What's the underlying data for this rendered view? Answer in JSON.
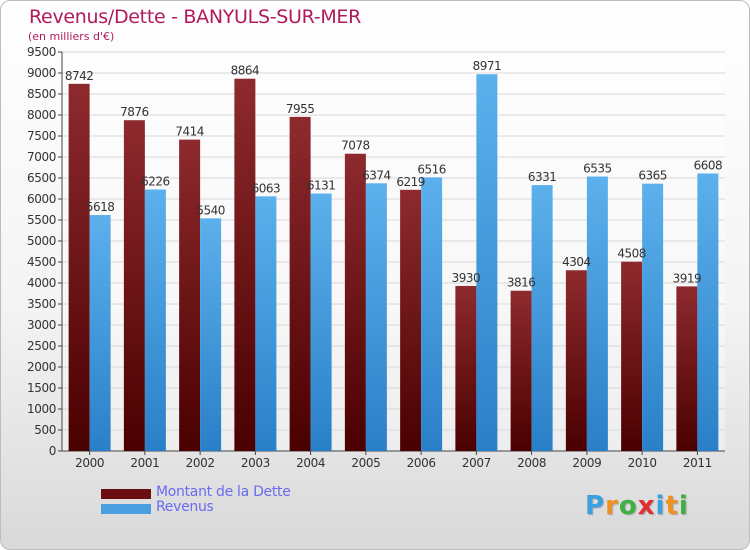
{
  "header": {
    "title": "Revenus/Dette - BANYULS-SUR-MER",
    "subtitle": "(en milliers d'€)"
  },
  "chart_data": {
    "type": "bar",
    "title": "Revenus/Dette - BANYULS-SUR-MER",
    "subtitle": "(en milliers d'€)",
    "xlabel": "",
    "ylabel": "",
    "categories": [
      "2000",
      "2001",
      "2002",
      "2003",
      "2004",
      "2005",
      "2006",
      "2007",
      "2008",
      "2009",
      "2010",
      "2011"
    ],
    "series": [
      {
        "name": "Montant de la Dette",
        "color": "#7a1418",
        "values": [
          8742,
          7876,
          7414,
          8864,
          7955,
          7078,
          6219,
          3930,
          3816,
          4304,
          4508,
          3919
        ]
      },
      {
        "name": "Revenus",
        "color": "#4a9fe0",
        "values": [
          5618,
          6226,
          5540,
          6063,
          6131,
          6374,
          6516,
          8971,
          6331,
          6535,
          6365,
          6608
        ]
      }
    ],
    "ylim": [
      0,
      9500
    ],
    "yticks": [
      0,
      500,
      1000,
      1500,
      2000,
      2500,
      3000,
      3500,
      4000,
      4500,
      5000,
      5500,
      6000,
      6500,
      7000,
      7500,
      8000,
      8500,
      9000,
      9500
    ],
    "grid": true,
    "legend_position": "bottom-left"
  },
  "legend": {
    "items": [
      {
        "label": "Montant de la Dette",
        "color": "#7a1418"
      },
      {
        "label": "Revenus",
        "color": "#4a9fe0"
      }
    ]
  },
  "brand": {
    "letters": [
      "P",
      "r",
      "o",
      "x",
      "i",
      "t",
      "i"
    ],
    "colors": [
      "#3aa0e0",
      "#f09020",
      "#40b040",
      "#e03030",
      "#3aa0e0",
      "#f09020",
      "#40b040"
    ]
  }
}
